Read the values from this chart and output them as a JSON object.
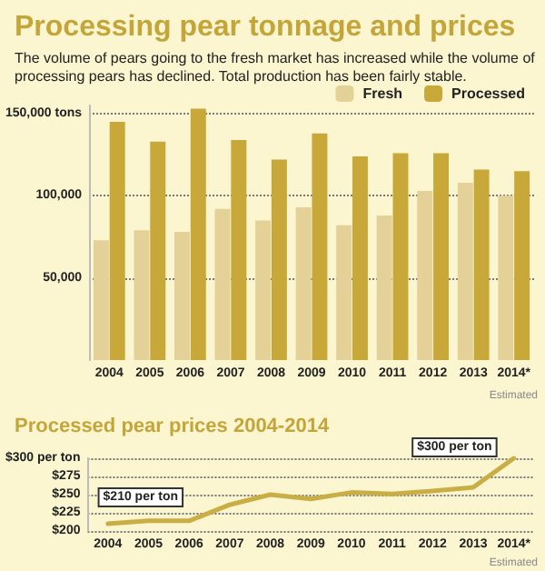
{
  "chart_data": [
    {
      "type": "bar",
      "title": "Processing pear tonnage and prices",
      "subtitle": "The volume of pears going to the fresh market has increased while the volume of processing pears has declined. Total production has been fairly stable.",
      "categories": [
        "2004",
        "2005",
        "2006",
        "2007",
        "2008",
        "2009",
        "2010",
        "2011",
        "2012",
        "2013",
        "2014*"
      ],
      "series": [
        {
          "name": "Fresh",
          "color": "#e4d198",
          "values": [
            73000,
            79000,
            78000,
            92000,
            85000,
            93000,
            82000,
            88000,
            103000,
            108000,
            100000
          ]
        },
        {
          "name": "Processed",
          "color": "#c7a838",
          "values": [
            145000,
            133000,
            153000,
            134000,
            122000,
            138000,
            124000,
            126000,
            126000,
            116000,
            115000
          ]
        }
      ],
      "ylim": [
        0,
        155000
      ],
      "yticks": [
        {
          "value": 50000,
          "label": "50,000"
        },
        {
          "value": 100000,
          "label": "100,000"
        },
        {
          "value": 150000,
          "label": "150,000 tons"
        }
      ],
      "grid": "y",
      "legend": "top right",
      "annotations": [
        "Estimated"
      ]
    },
    {
      "type": "line",
      "title": "Processed pear prices 2004-2014",
      "categories": [
        "2004",
        "2005",
        "2006",
        "2007",
        "2008",
        "2009",
        "2010",
        "2011",
        "2012",
        "2013",
        "2014*"
      ],
      "series": [
        {
          "color": "#c9ad45",
          "values": [
            210,
            214,
            214,
            236,
            250,
            244,
            253,
            251,
            255,
            260,
            300
          ]
        }
      ],
      "ylim": [
        200,
        300
      ],
      "yticks": [
        {
          "value": 200,
          "label": "$200"
        },
        {
          "value": 225,
          "label": "$225"
        },
        {
          "value": 250,
          "label": "$250"
        },
        {
          "value": 275,
          "label": "$275"
        },
        {
          "value": 300,
          "label": "$300 per ton"
        }
      ],
      "grid": "y",
      "marker": "none",
      "line_style": "solid",
      "annotations": [
        {
          "text": "$210 per ton",
          "x": "2004",
          "y": 210
        },
        {
          "text": "$300 per ton",
          "x": "2014*",
          "y": 300
        },
        "Estimated"
      ]
    }
  ]
}
